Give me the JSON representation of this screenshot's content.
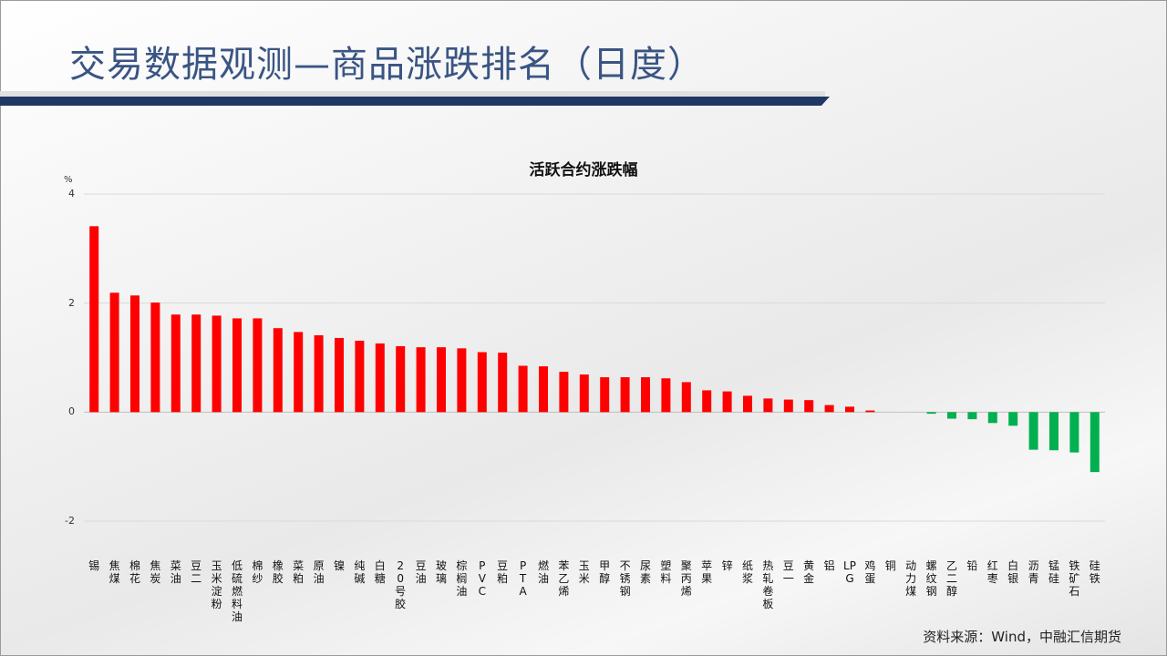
{
  "header": {
    "title": "交易数据观测—商品涨跌排名（日度）"
  },
  "footer": {
    "source": "资料来源：Wind，中融汇信期货"
  },
  "colors": {
    "positive": "#ff0000",
    "negative": "#00b050",
    "title": "#3a5583",
    "bar": "#1f3864"
  },
  "chart_data": {
    "type": "bar",
    "title": "活跃合约涨跌幅",
    "ylabel": "%",
    "xlabel": "",
    "ylim": [
      -2,
      4
    ],
    "yticks": [
      "4",
      "2",
      "0",
      "-2"
    ],
    "ytick_values": [
      4,
      2,
      0,
      -2
    ],
    "grid": true,
    "categories": [
      "锡",
      "焦煤",
      "棉花",
      "焦炭",
      "菜油",
      "豆二",
      "玉米淀粉",
      "低硫燃料油",
      "棉纱",
      "橡胶",
      "菜粕",
      "原油",
      "镍",
      "纯碱",
      "白糖",
      "20号胶",
      "豆油",
      "玻璃",
      "棕榈油",
      "PVC",
      "豆粕",
      "PTA",
      "燃油",
      "苯乙烯",
      "玉米",
      "甲醇",
      "不锈钢",
      "尿素",
      "塑料",
      "聚丙烯",
      "苹果",
      "锌",
      "纸浆",
      "热轧卷板",
      "豆一",
      "黄金",
      "铝",
      "LPG",
      "鸡蛋",
      "铜",
      "动力煤",
      "螺纹钢",
      "乙二醇",
      "铅",
      "红枣",
      "白银",
      "沥青",
      "锰硅",
      "铁矿石",
      "硅铁"
    ],
    "values": [
      3.41,
      2.19,
      2.14,
      2.01,
      1.79,
      1.79,
      1.77,
      1.72,
      1.72,
      1.54,
      1.47,
      1.41,
      1.36,
      1.31,
      1.26,
      1.21,
      1.19,
      1.19,
      1.17,
      1.1,
      1.09,
      0.85,
      0.84,
      0.74,
      0.69,
      0.64,
      0.64,
      0.64,
      0.62,
      0.55,
      0.4,
      0.38,
      0.3,
      0.25,
      0.23,
      0.22,
      0.13,
      0.1,
      0.03,
      0,
      0,
      -0.03,
      -0.12,
      -0.13,
      -0.2,
      -0.25,
      -0.69,
      -0.7,
      -0.74,
      -1.1
    ]
  }
}
